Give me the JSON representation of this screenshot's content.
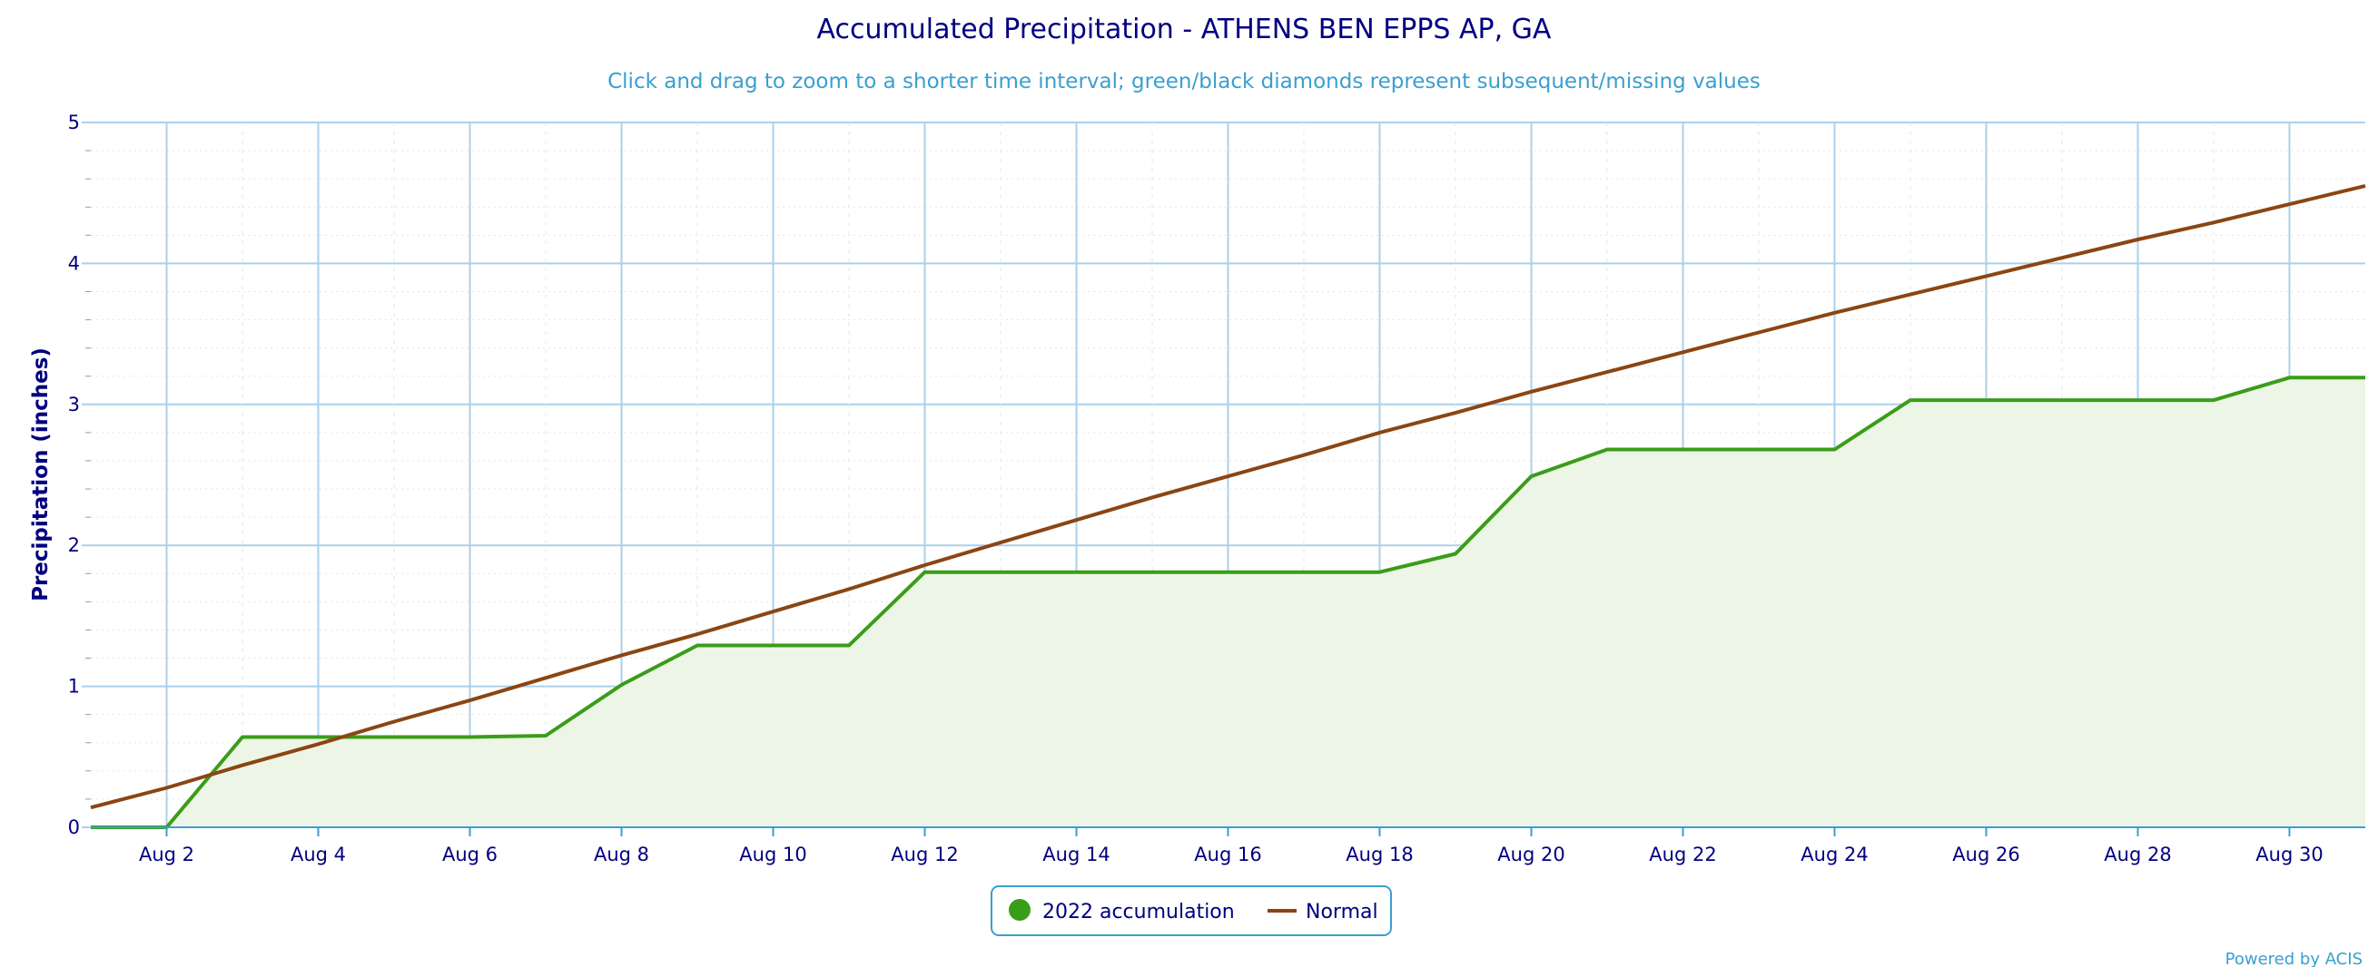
{
  "chart_data": {
    "type": "line",
    "title": "Accumulated Precipitation - ATHENS BEN EPPS AP, GA",
    "subtitle": "Click and drag to zoom to a shorter time interval; green/black diamonds represent subsequent/missing values",
    "xlabel": "",
    "ylabel": "Precipitation (inches)",
    "ylim": [
      0,
      5
    ],
    "yticks": [
      "0",
      "1",
      "2",
      "3",
      "4",
      "5"
    ],
    "x": [
      1,
      2,
      3,
      4,
      5,
      6,
      7,
      8,
      9,
      10,
      11,
      12,
      13,
      14,
      15,
      16,
      17,
      18,
      19,
      20,
      21,
      22,
      23,
      24,
      25,
      26,
      27,
      28,
      29,
      30,
      31
    ],
    "xlim": [
      1,
      31
    ],
    "xticks": [
      {
        "x": 2,
        "label": "Aug 2"
      },
      {
        "x": 4,
        "label": "Aug 4"
      },
      {
        "x": 6,
        "label": "Aug 6"
      },
      {
        "x": 8,
        "label": "Aug 8"
      },
      {
        "x": 10,
        "label": "Aug 10"
      },
      {
        "x": 12,
        "label": "Aug 12"
      },
      {
        "x": 14,
        "label": "Aug 14"
      },
      {
        "x": 16,
        "label": "Aug 16"
      },
      {
        "x": 18,
        "label": "Aug 18"
      },
      {
        "x": 20,
        "label": "Aug 20"
      },
      {
        "x": 22,
        "label": "Aug 22"
      },
      {
        "x": 24,
        "label": "Aug 24"
      },
      {
        "x": 26,
        "label": "Aug 26"
      },
      {
        "x": 28,
        "label": "Aug 28"
      },
      {
        "x": 30,
        "label": "Aug 30"
      }
    ],
    "series": [
      {
        "name": "2022 accumulation",
        "color": "#3a9d18",
        "fill": "#edf5e6",
        "values": [
          0.0,
          0.0,
          0.64,
          0.64,
          0.64,
          0.64,
          0.65,
          1.01,
          1.29,
          1.29,
          1.29,
          1.81,
          1.81,
          1.81,
          1.81,
          1.81,
          1.81,
          1.81,
          1.94,
          2.49,
          2.68,
          2.68,
          2.68,
          2.68,
          3.03,
          3.03,
          3.03,
          3.03,
          3.03,
          3.19,
          3.19
        ]
      },
      {
        "name": "Normal",
        "color": "#8b4513",
        "values": [
          0.14,
          0.28,
          0.44,
          0.59,
          0.75,
          0.9,
          1.06,
          1.22,
          1.37,
          1.53,
          1.69,
          1.86,
          2.02,
          2.18,
          2.34,
          2.49,
          2.64,
          2.8,
          2.94,
          3.09,
          3.23,
          3.37,
          3.51,
          3.65,
          3.78,
          3.91,
          4.04,
          4.17,
          4.29,
          4.42,
          4.55
        ]
      }
    ],
    "grid": true,
    "legend_position": "bottom-center",
    "credit": "Powered by ACIS"
  },
  "colors": {
    "grid": "#abd0ea",
    "axis": "#3a9fd0",
    "text": "#000080",
    "legend_border": "#3a9fd0"
  }
}
